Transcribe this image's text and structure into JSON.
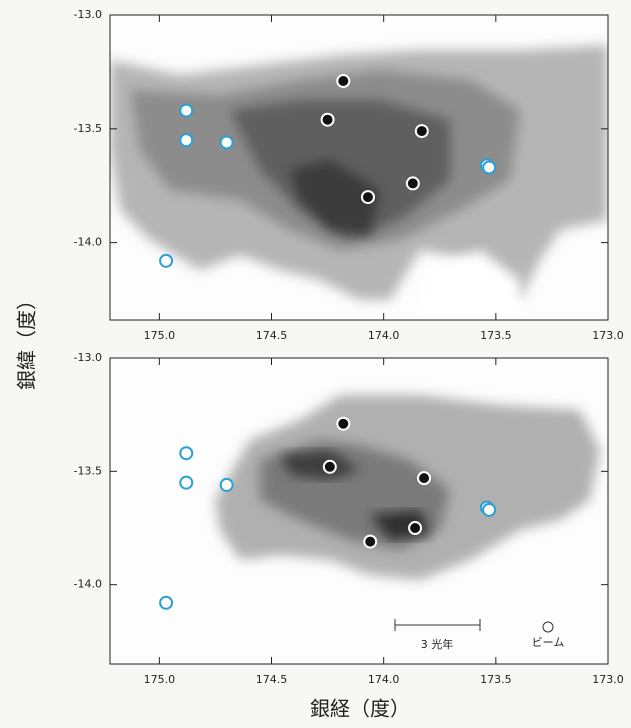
{
  "figure": {
    "xlabel": "銀経（度）",
    "ylabel": "銀緯（度）"
  },
  "chart_data": [
    {
      "type": "scatter",
      "xlim": [
        175.22,
        173.0
      ],
      "ylim": [
        -14.34,
        -13.0
      ],
      "xticks": [
        {
          "value": 175.0,
          "label": "175.0"
        },
        {
          "value": 174.5,
          "label": "174.5"
        },
        {
          "value": 174.0,
          "label": "174.0"
        },
        {
          "value": 173.5,
          "label": "173.5"
        },
        {
          "value": 173.0,
          "label": "173.0"
        }
      ],
      "yticks": [
        {
          "value": -13.0,
          "label": "-13.0"
        },
        -13.5,
        {
          "value": -14.0,
          "label": "-14.0"
        }
      ],
      "series": [
        {
          "color": "#111111",
          "edgecolor": "#ffffff",
          "x": [
            174.18,
            174.25,
            173.83,
            174.07,
            173.87
          ],
          "values": [
            -13.29,
            -13.46,
            -13.51,
            -13.8,
            -13.74
          ]
        },
        {
          "color": "#ffffff",
          "edgecolor": "#2a9fd8",
          "x": [
            174.88,
            174.88,
            174.7,
            173.54,
            173.53,
            174.97
          ],
          "values": [
            -13.42,
            -13.55,
            -13.56,
            -13.66,
            -13.67,
            -14.08
          ]
        }
      ]
    },
    {
      "type": "scatter",
      "xlim": [
        175.22,
        173.0
      ],
      "ylim": [
        -14.35,
        -13.0
      ],
      "xticks": [
        {
          "value": 175.0,
          "label": "175.0"
        },
        {
          "value": 174.5,
          "label": "174.5"
        },
        {
          "value": 174.0,
          "label": "174.0"
        },
        {
          "value": 173.5,
          "label": "173.5"
        },
        {
          "value": 173.0,
          "label": "173.0"
        }
      ],
      "yticks": [
        {
          "value": -13.0,
          "label": "-13.0"
        },
        -13.5,
        {
          "value": -14.0,
          "label": "-14.0"
        }
      ],
      "series": [
        {
          "color": "#111111",
          "edgecolor": "#ffffff",
          "x": [
            174.18,
            174.24,
            173.82,
            174.06,
            173.86
          ],
          "values": [
            -13.29,
            -13.48,
            -13.53,
            -13.81,
            -13.75
          ]
        },
        {
          "color": "#ffffff",
          "edgecolor": "#2a9fd8",
          "x": [
            174.88,
            174.88,
            174.7,
            173.54,
            173.53,
            174.97
          ],
          "values": [
            -13.42,
            -13.55,
            -13.56,
            -13.66,
            -13.67,
            -14.08
          ]
        }
      ],
      "annotations": [
        "3 光年",
        "ビーム"
      ]
    }
  ]
}
